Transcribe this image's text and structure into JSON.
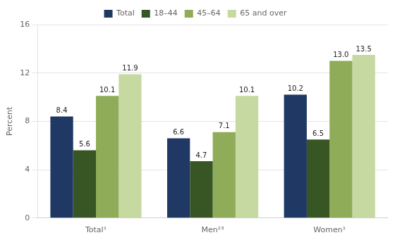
{
  "chart_data": {
    "type": "bar",
    "categories": [
      "Total¹",
      "Men²³",
      "Women¹"
    ],
    "series": [
      {
        "name": "Total",
        "color": "#1f3864",
        "values": [
          8.4,
          6.6,
          10.2
        ]
      },
      {
        "name": "18–44",
        "color": "#375623",
        "values": [
          5.6,
          4.7,
          6.5
        ]
      },
      {
        "name": "45–64",
        "color": "#8fac58",
        "values": [
          10.1,
          7.1,
          13.0
        ],
        "value_labels": [
          "10.1",
          "7.1",
          "13.0"
        ]
      },
      {
        "name": "65 and over",
        "color": "#c6d9a0",
        "values": [
          11.9,
          10.1,
          13.5
        ]
      }
    ],
    "ylabel": "Percent",
    "ylim": [
      0,
      16
    ],
    "yticks": [
      0,
      4,
      8,
      12,
      16
    ],
    "grid": true,
    "legend": "top",
    "data_labels": true
  }
}
